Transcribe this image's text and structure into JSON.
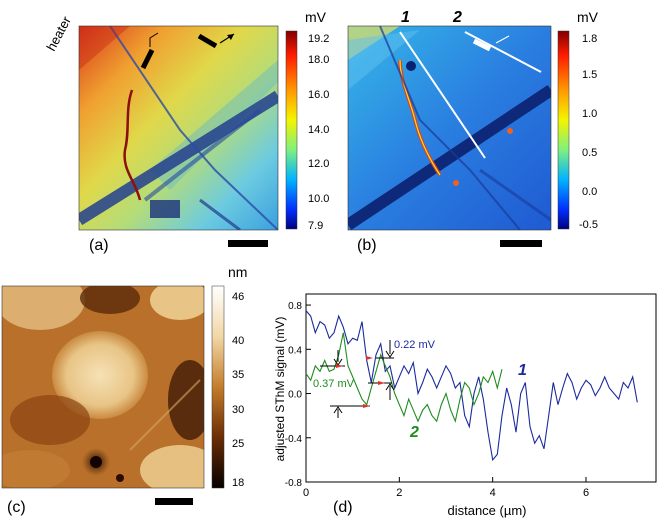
{
  "panel_a": {
    "label": "(a)",
    "heater_label": "heater",
    "colorbar": {
      "unit": "mV",
      "ticks": [
        "19.2",
        "18.0",
        "16.0",
        "14.0",
        "12.0",
        "10.0",
        "7.9"
      ]
    },
    "colors": {
      "hot": "#d8391c",
      "warm": "#f0c83a",
      "mid": "#c6dc6a",
      "cool": "#5cc0e0",
      "cold": "#1d3fa8"
    }
  },
  "panel_b": {
    "label": "(b)",
    "line_labels": [
      "1",
      "2"
    ],
    "colorbar": {
      "unit": "mV",
      "ticks": [
        "1.8",
        "1.5",
        "1.0",
        "0.5",
        "0.0",
        "-0.5"
      ]
    }
  },
  "panel_c": {
    "label": "(c)",
    "colorbar": {
      "unit": "nm",
      "ticks": [
        "46",
        "40",
        "35",
        "30",
        "25",
        "18"
      ]
    }
  },
  "panel_d": {
    "label": "(d)",
    "annotations": {
      "top": "0.22 mV",
      "bottom": "0.37 mV"
    },
    "series_labels": [
      "1",
      "2"
    ],
    "colors": {
      "series1": "#1a2a9e",
      "series2": "#1f8c1f",
      "marker": "#e0302a"
    }
  },
  "chart_data": {
    "type": "line",
    "title": "",
    "xlabel": "distance (µm)",
    "ylabel": "adjusted SThM signal (mV)",
    "xlim": [
      0,
      7.5
    ],
    "ylim": [
      -0.8,
      0.9
    ],
    "xticks": [
      "0",
      "2",
      "4",
      "6"
    ],
    "yticks": [
      "0.8",
      "0.4",
      "0.0",
      "-0.4",
      "-0.8"
    ],
    "series": [
      {
        "name": "1",
        "x": [
          0,
          0.1,
          0.2,
          0.3,
          0.4,
          0.5,
          0.6,
          0.7,
          0.8,
          0.9,
          1.0,
          1.1,
          1.2,
          1.3,
          1.4,
          1.5,
          1.6,
          1.7,
          1.8,
          1.9,
          2.0,
          2.1,
          2.2,
          2.3,
          2.4,
          2.5,
          2.6,
          2.7,
          2.8,
          2.9,
          3.0,
          3.1,
          3.2,
          3.3,
          3.4,
          3.5,
          3.6,
          3.7,
          3.8,
          3.9,
          4.0,
          4.1,
          4.2,
          4.3,
          4.4,
          4.5,
          4.6,
          4.7,
          4.8,
          4.9,
          5.0,
          5.1,
          5.2,
          5.3,
          5.4,
          5.5,
          5.6,
          5.7,
          5.8,
          5.9,
          6.0,
          6.1,
          6.2,
          6.3,
          6.4,
          6.5,
          6.6,
          6.7,
          6.8,
          6.9,
          7.0,
          7.1
        ],
        "y": [
          0.75,
          0.7,
          0.55,
          0.65,
          0.62,
          0.5,
          0.55,
          0.7,
          0.6,
          0.45,
          0.5,
          0.48,
          0.65,
          0.3,
          0.1,
          0.35,
          0.45,
          0.2,
          0.25,
          0.05,
          0.15,
          0.25,
          0.18,
          0.28,
          0.0,
          0.1,
          0.22,
          0.15,
          0.05,
          0.15,
          0.25,
          0.18,
          0.05,
          0.1,
          -0.2,
          -0.3,
          0.0,
          0.15,
          -0.05,
          -0.35,
          -0.6,
          -0.55,
          -0.2,
          0.05,
          -0.1,
          -0.35,
          0.0,
          0.1,
          -0.3,
          -0.45,
          -0.38,
          -0.5,
          -0.2,
          0.1,
          -0.1,
          0.05,
          0.18,
          0.1,
          -0.05,
          0.05,
          0.12,
          0.08,
          -0.02,
          0.05,
          0.15,
          0.05,
          0.0,
          -0.05,
          0.1,
          0.05,
          0.15,
          -0.08
        ]
      },
      {
        "name": "2",
        "x": [
          0,
          0.1,
          0.2,
          0.3,
          0.4,
          0.5,
          0.6,
          0.7,
          0.8,
          0.9,
          1.0,
          1.1,
          1.2,
          1.3,
          1.4,
          1.5,
          1.6,
          1.7,
          1.8,
          1.9,
          2.0,
          2.1,
          2.2,
          2.3,
          2.4,
          2.5,
          2.6,
          2.7,
          2.8,
          2.9,
          3.0,
          3.1,
          3.2,
          3.3,
          3.4,
          3.5,
          3.6,
          3.7,
          3.8,
          3.9,
          4.0,
          4.1,
          4.2
        ],
        "y": [
          0.18,
          0.12,
          0.25,
          0.2,
          0.3,
          0.2,
          0.22,
          0.35,
          0.55,
          0.25,
          0.15,
          0.05,
          -0.05,
          -0.1,
          0.05,
          0.2,
          0.35,
          0.25,
          0.15,
          0.0,
          -0.1,
          -0.2,
          -0.05,
          -0.15,
          -0.25,
          -0.15,
          -0.1,
          -0.2,
          -0.25,
          -0.1,
          0.0,
          -0.15,
          -0.25,
          -0.05,
          0.1,
          0.05,
          -0.1,
          0.0,
          0.15,
          0.1,
          0.2,
          0.05,
          0.22
        ]
      }
    ]
  }
}
